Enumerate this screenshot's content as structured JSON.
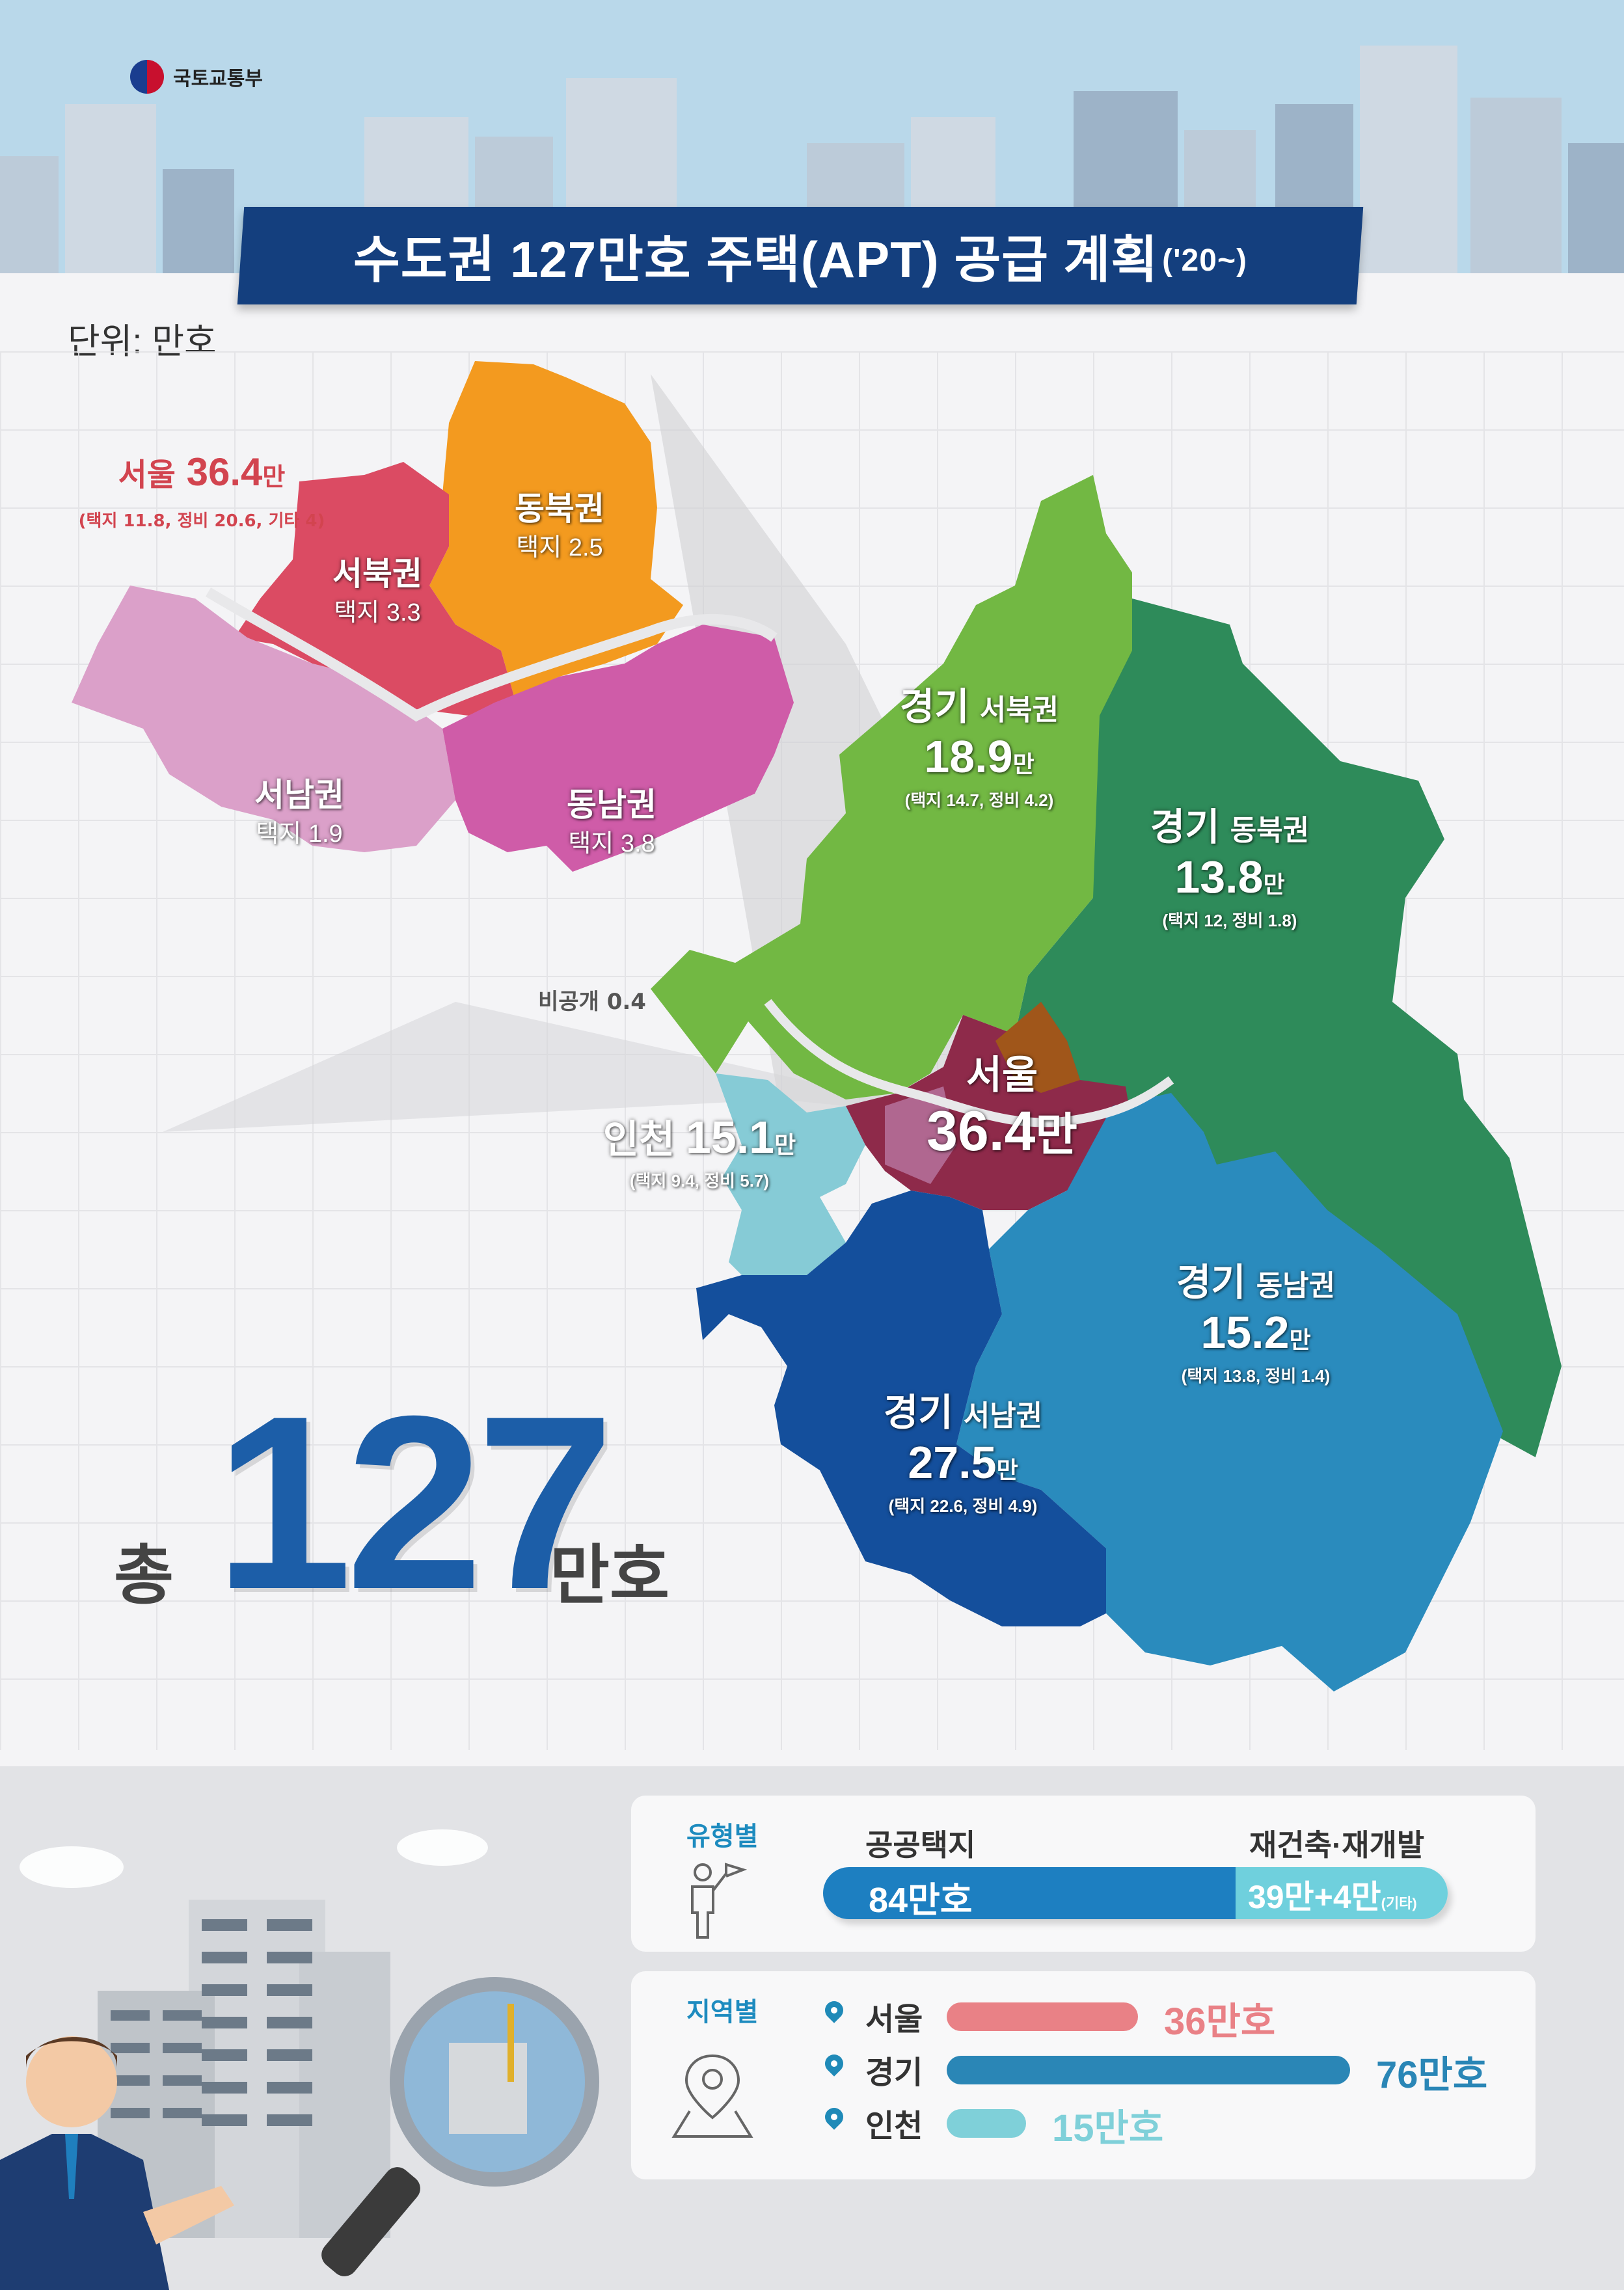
{
  "logo": {
    "text": "국토교통부",
    "icon": "taegeuk-icon"
  },
  "title": {
    "main": "수도권 127만호 주택(APT) 공급 계획",
    "sub": "('20~)"
  },
  "unit": "단위: 만호",
  "seoul_inset": {
    "total_prefix": "서울",
    "total_value": "36.4",
    "total_suffix": "만",
    "detail": "(택지 11.8, 정비 20.6, 기타 4)",
    "regions": [
      {
        "name": "동북권",
        "value": "택지 2.5",
        "color": "#f39a1f"
      },
      {
        "name": "서북권",
        "value": "택지 3.3",
        "color": "#db4b63"
      },
      {
        "name": "서남권",
        "value": "택지 1.9",
        "color": "#dba0c9"
      },
      {
        "name": "동남권",
        "value": "택지 3.8",
        "color": "#cf5ca8"
      }
    ],
    "nondisclosed": "비공개 0.4"
  },
  "regions": {
    "gyeonggi_nw": {
      "name": "경기",
      "sub": "서북권",
      "value": "18.9",
      "unit": "만",
      "detail": "(택지 14.7, 정비 4.2)",
      "color": "#72b843"
    },
    "gyeonggi_ne": {
      "name": "경기",
      "sub": "동북권",
      "value": "13.8",
      "unit": "만",
      "detail": "(택지 12, 정비 1.8)",
      "color": "#2e8b5a"
    },
    "seoul": {
      "name": "서울",
      "value": "36.4",
      "unit": "만",
      "color": "#8e2a4a"
    },
    "incheon": {
      "name": "인천",
      "value": "15.1",
      "unit": "만",
      "detail": "(택지 9.4, 정비 5.7)",
      "color": "#86cbd6"
    },
    "gyeonggi_se": {
      "name": "경기",
      "sub": "동남권",
      "value": "15.2",
      "unit": "만",
      "detail": "(택지 13.8, 정비 1.4)",
      "color": "#2a8bbd"
    },
    "gyeonggi_sw": {
      "name": "경기",
      "sub": "서남권",
      "value": "27.5",
      "unit": "만",
      "detail": "(택지 22.6, 정비 4.9)",
      "color": "#144f9c"
    }
  },
  "total": {
    "prefix": "총",
    "value": "127",
    "suffix": "만호"
  },
  "by_type": {
    "title": "유형별",
    "label_public": "공공택지",
    "label_rebuild": "재건축·재개발",
    "public_value": "84만호",
    "rebuild_value": "39만+4만",
    "rebuild_note": "(기타)",
    "public_share": 0.66,
    "rebuild_share": 0.34,
    "colors": {
      "public": "#1d7fc1",
      "rebuild": "#6fd0dd"
    }
  },
  "by_region": {
    "title": "지역별",
    "rows": [
      {
        "label": "서울",
        "value": "36만호",
        "amount": 36,
        "color": "#e98186"
      },
      {
        "label": "경기",
        "value": "76만호",
        "amount": 76,
        "color": "#2a86b6"
      },
      {
        "label": "인천",
        "value": "15만호",
        "amount": 15,
        "color": "#7fd0d9"
      }
    ]
  }
}
